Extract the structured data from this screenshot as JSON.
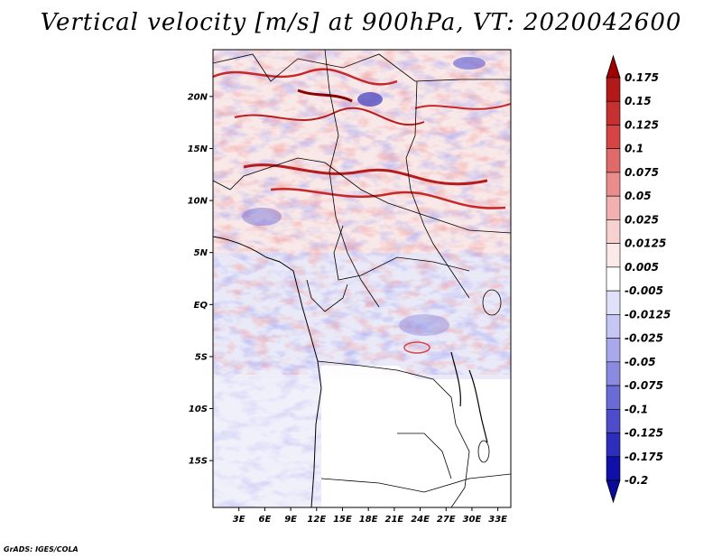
{
  "title": "Vertical velocity [m/s] at 900hPa, VT: 2020042600",
  "credit": "GrADS: IGES/COLA",
  "map": {
    "lon_range": [
      0,
      34.5
    ],
    "lat_range": [
      -19.5,
      24.5
    ],
    "lat_ticks": [
      {
        "value": 20,
        "label": "20N"
      },
      {
        "value": 15,
        "label": "15N"
      },
      {
        "value": 10,
        "label": "10N"
      },
      {
        "value": 5,
        "label": "5N"
      },
      {
        "value": 0,
        "label": "EQ"
      },
      {
        "value": -5,
        "label": "5S"
      },
      {
        "value": -10,
        "label": "10S"
      },
      {
        "value": -15,
        "label": "15S"
      }
    ],
    "lon_ticks": [
      {
        "value": 3,
        "label": "3E"
      },
      {
        "value": 6,
        "label": "6E"
      },
      {
        "value": 9,
        "label": "9E"
      },
      {
        "value": 12,
        "label": "12E"
      },
      {
        "value": 15,
        "label": "15E"
      },
      {
        "value": 18,
        "label": "18E"
      },
      {
        "value": 21,
        "label": "21E"
      },
      {
        "value": 24,
        "label": "24E"
      },
      {
        "value": 27,
        "label": "27E"
      },
      {
        "value": 30,
        "label": "30E"
      },
      {
        "value": 33,
        "label": "33E"
      }
    ]
  },
  "colorbar": {
    "units": "m/s",
    "levels": [
      {
        "label": "0.175",
        "color": "#a00000"
      },
      {
        "label": "0.15",
        "color": "#b21a1a"
      },
      {
        "label": "0.125",
        "color": "#c53030"
      },
      {
        "label": "0.1",
        "color": "#d64545"
      },
      {
        "label": "0.075",
        "color": "#e06a6a"
      },
      {
        "label": "0.05",
        "color": "#ea8c8c"
      },
      {
        "label": "0.025",
        "color": "#f2b0b0"
      },
      {
        "label": "0.0125",
        "color": "#f7d0d0"
      },
      {
        "label": "0.005",
        "color": "#fbe8e8"
      },
      {
        "label": "-0.005",
        "color": "#ffffff"
      },
      {
        "label": "-0.0125",
        "color": "#e0e0f8"
      },
      {
        "label": "-0.025",
        "color": "#c6c6f2"
      },
      {
        "label": "-0.05",
        "color": "#a8a8ea"
      },
      {
        "label": "-0.075",
        "color": "#8a8ae0"
      },
      {
        "label": "-0.1",
        "color": "#6b6bd6"
      },
      {
        "label": "-0.125",
        "color": "#4d4dcc"
      },
      {
        "label": "-0.175",
        "color": "#2e2ebd"
      },
      {
        "label": "-0.2",
        "color": "#1010a8"
      }
    ],
    "bottom_color": "#0a0a9a"
  }
}
